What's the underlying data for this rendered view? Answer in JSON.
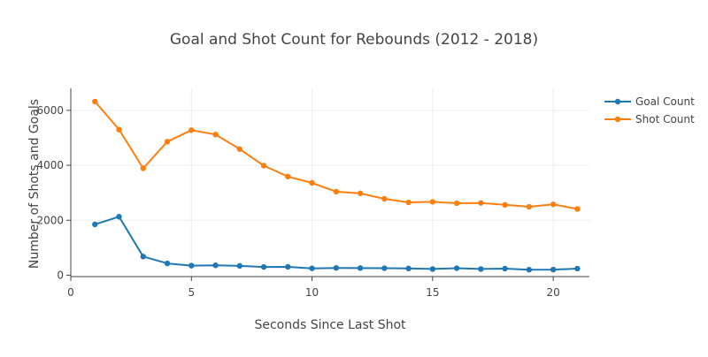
{
  "chart_data": {
    "type": "line",
    "title": "Goal and Shot Count for Rebounds (2012 - 2018)",
    "xlabel": "Seconds Since Last Shot",
    "ylabel": "Number of Shots and Goals",
    "xlim": [
      0,
      21.5
    ],
    "ylim": [
      -50,
      6800
    ],
    "x_ticks": [
      0,
      5,
      10,
      15,
      20
    ],
    "y_ticks": [
      0,
      2000,
      4000,
      6000
    ],
    "grid": true,
    "legend_position": "top-right",
    "x": [
      1,
      2,
      3,
      4,
      5,
      6,
      7,
      8,
      9,
      10,
      11,
      12,
      13,
      14,
      15,
      16,
      17,
      18,
      19,
      20,
      21
    ],
    "series": [
      {
        "name": "Goal Count",
        "color": "#1f77b4",
        "values": [
          1850,
          2130,
          680,
          430,
          350,
          360,
          340,
          300,
          305,
          250,
          265,
          260,
          255,
          245,
          225,
          255,
          225,
          240,
          200,
          205,
          240
        ]
      },
      {
        "name": "Shot Count",
        "color": "#ff7f0e",
        "values": [
          6320,
          5300,
          3890,
          4860,
          5280,
          5120,
          4590,
          3990,
          3590,
          3360,
          3040,
          2980,
          2780,
          2650,
          2670,
          2620,
          2630,
          2560,
          2490,
          2580,
          2410
        ]
      }
    ]
  }
}
